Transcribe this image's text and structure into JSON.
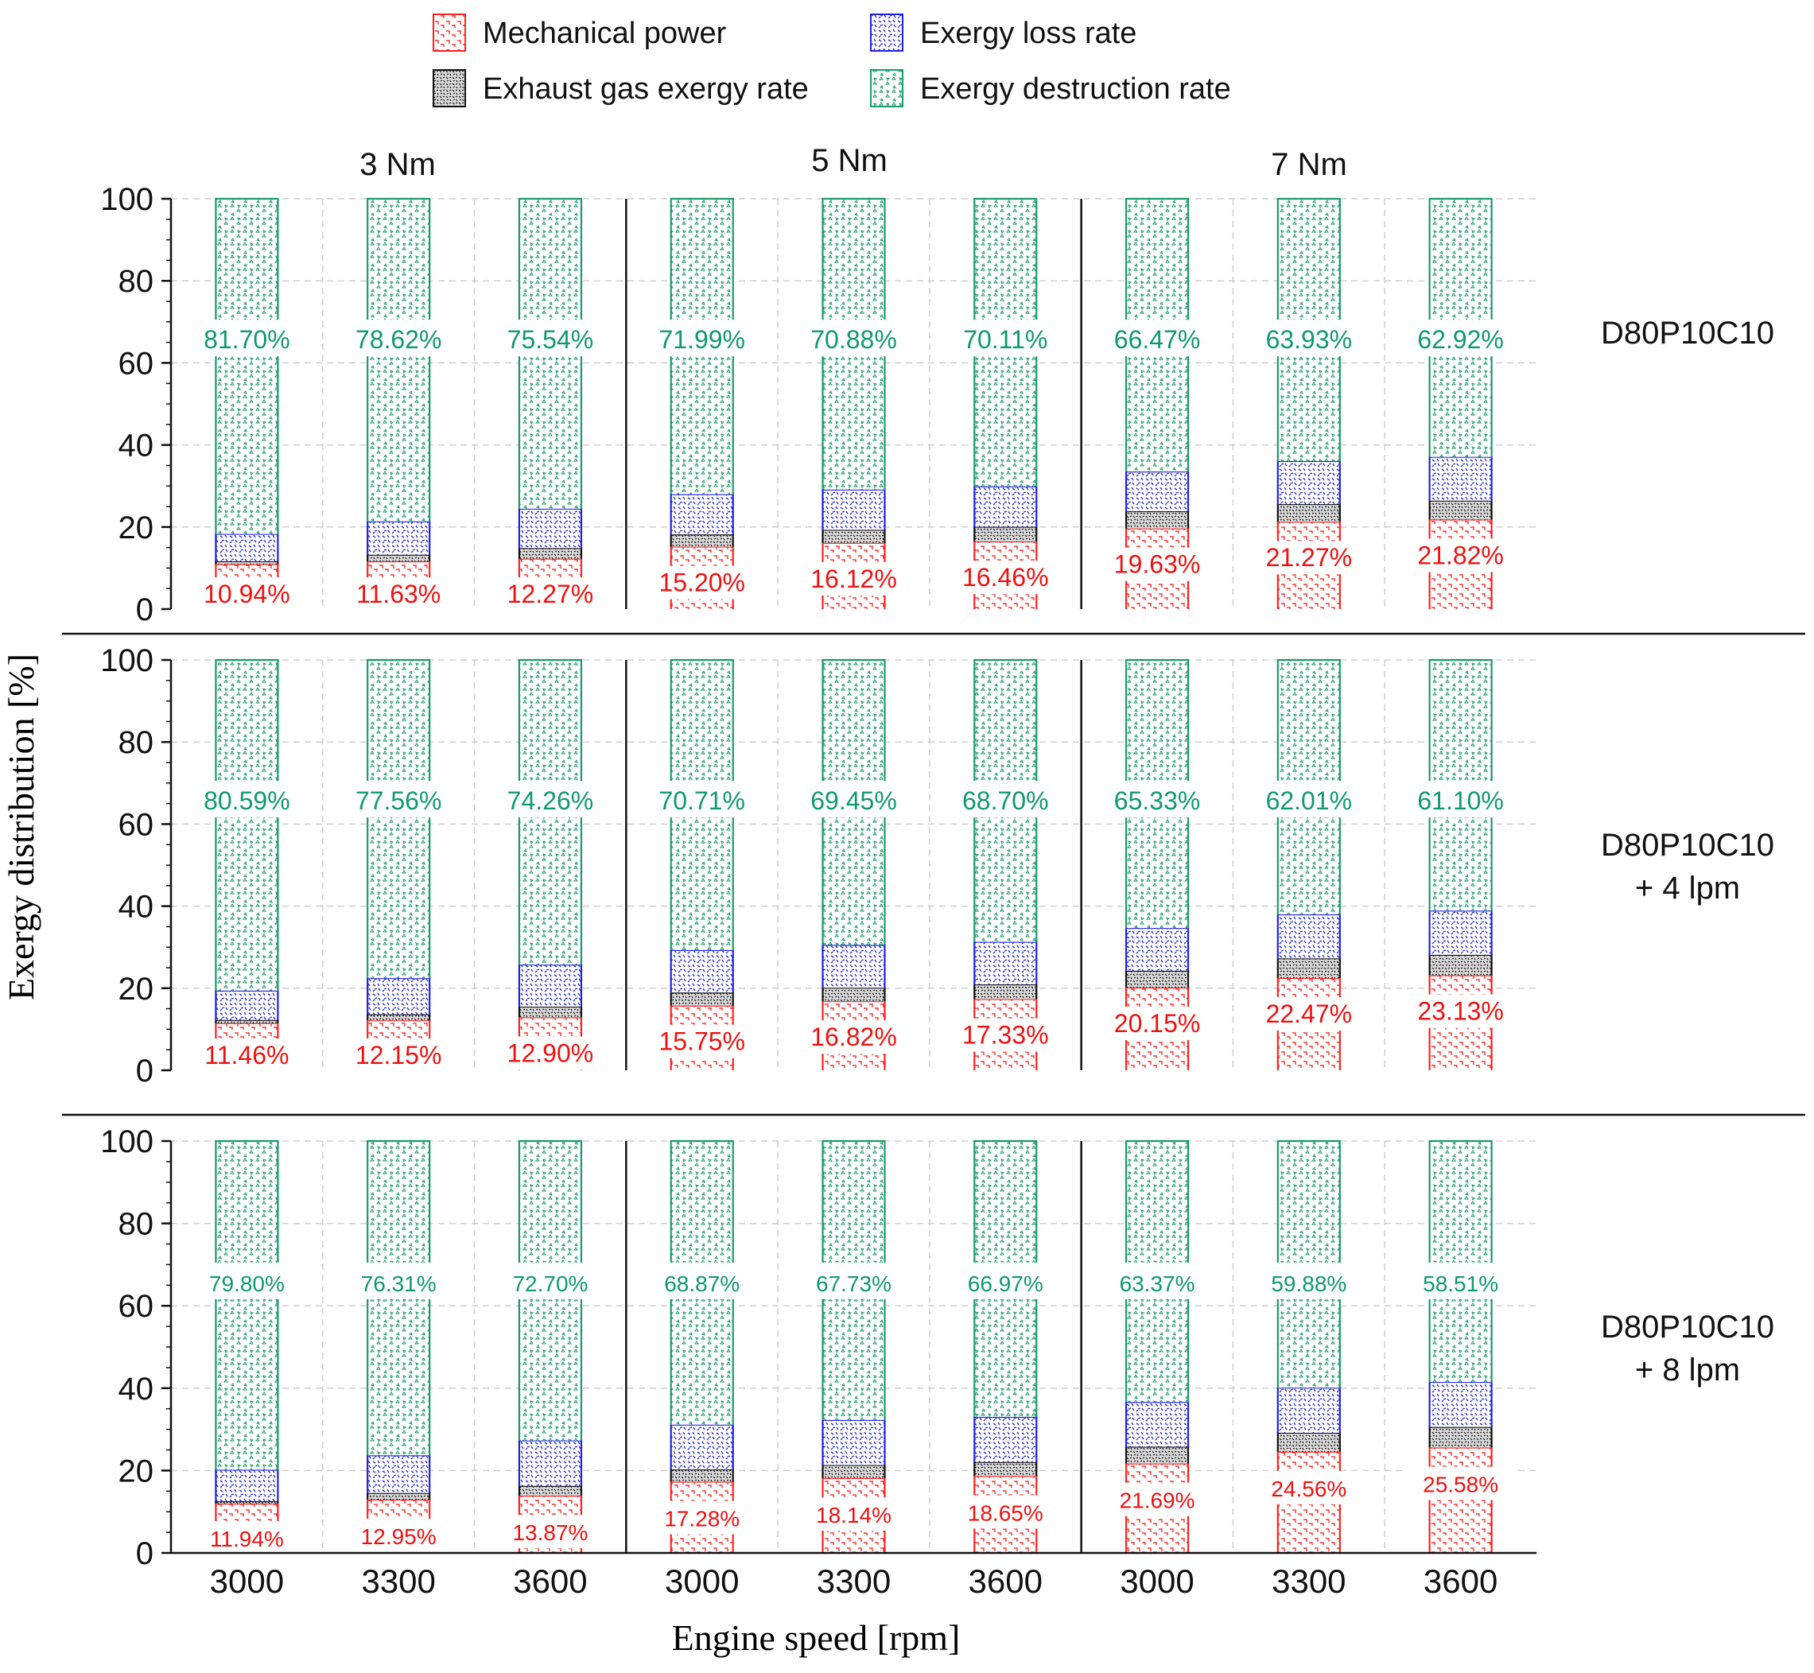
{
  "chart_data": {
    "type": "bar",
    "stacked": true,
    "title": "",
    "xlabel": "Engine speed [rpm]",
    "ylabel": "Exergy distribution  [%]",
    "ylim": [
      0,
      100
    ],
    "yticks": [
      "0",
      "20",
      "40",
      "60",
      "80",
      "100"
    ],
    "legend_position": "top-center",
    "legend": [
      {
        "key": "mech",
        "label": "Mechanical power",
        "color": "#ff2020"
      },
      {
        "key": "loss",
        "label": "Exergy loss rate",
        "color": "#2020e0"
      },
      {
        "key": "exh",
        "label": "Exhaust gas exergy rate",
        "color": "#111111"
      },
      {
        "key": "dest",
        "label": "Exergy destruction rate",
        "color": "#1a9a6a"
      }
    ],
    "torque_groups": [
      "3 Nm",
      "5 Nm",
      "7 Nm"
    ],
    "categories": [
      "3000",
      "3300",
      "3600",
      "3000",
      "3300",
      "3600",
      "3000",
      "3300",
      "3600"
    ],
    "panels": [
      {
        "name": "D80P10C10",
        "label_lines": [
          "D80P10C10"
        ],
        "mech_labels": [
          "10.94%",
          "11.63%",
          "12.27%",
          "15.20%",
          "16.12%",
          "16.46%",
          "19.63%",
          "21.27%",
          "21.82%"
        ],
        "dest_labels": [
          "81.70%",
          "78.62%",
          "75.54%",
          "71.99%",
          "70.88%",
          "70.11%",
          "66.47%",
          "63.93%",
          "62.92%"
        ],
        "mech": [
          10.94,
          11.63,
          12.27,
          15.2,
          16.12,
          16.46,
          19.63,
          21.27,
          21.82
        ],
        "exh": [
          0.7,
          1.6,
          2.6,
          3.0,
          3.2,
          3.6,
          4.2,
          4.3,
          4.6
        ],
        "loss": [
          6.66,
          8.15,
          9.59,
          9.81,
          9.8,
          9.83,
          9.7,
          10.5,
          10.66
        ],
        "dest": [
          81.7,
          78.62,
          75.54,
          71.99,
          70.88,
          70.11,
          66.47,
          63.93,
          62.92
        ]
      },
      {
        "name": "D80P10C10 + 4 lpm",
        "label_lines": [
          "D80P10C10",
          "+ 4 lpm"
        ],
        "mech_labels": [
          "11.46%",
          "12.15%",
          "12.90%",
          "15.75%",
          "16.82%",
          "17.33%",
          "20.15%",
          "22.47%",
          "23.13%"
        ],
        "dest_labels": [
          "80.59%",
          "77.56%",
          "74.26%",
          "70.71%",
          "69.45%",
          "68.70%",
          "65.33%",
          "62.01%",
          "61.10%"
        ],
        "mech": [
          11.46,
          12.15,
          12.9,
          15.75,
          16.82,
          17.33,
          20.15,
          22.47,
          23.13
        ],
        "exh": [
          0.8,
          1.5,
          2.6,
          3.2,
          3.3,
          3.6,
          4.1,
          4.8,
          5.0
        ],
        "loss": [
          7.15,
          8.79,
          10.24,
          10.34,
          10.43,
          10.37,
          10.42,
          10.72,
          10.77
        ],
        "dest": [
          80.59,
          77.56,
          74.26,
          70.71,
          69.45,
          68.7,
          65.33,
          62.01,
          61.1
        ]
      },
      {
        "name": "D80P10C10 + 8 lpm",
        "label_lines": [
          "D80P10C10",
          "+ 8 lpm"
        ],
        "mech_labels": [
          "11.94%",
          "12.95%",
          "13.87%",
          "17.28%",
          "18.14%",
          "18.65%",
          "21.69%",
          "24.56%",
          "25.58%"
        ],
        "dest_labels": [
          "79.80%",
          "76.31%",
          "72.70%",
          "68.87%",
          "67.73%",
          "66.97%",
          "63.37%",
          "59.88%",
          "58.51%"
        ],
        "mech": [
          11.94,
          12.95,
          13.87,
          17.28,
          18.14,
          18.65,
          21.69,
          24.56,
          25.58
        ],
        "exh": [
          0.6,
          1.6,
          2.4,
          3.0,
          3.2,
          3.4,
          4.1,
          4.6,
          5.0
        ],
        "loss": [
          7.66,
          9.14,
          11.03,
          10.85,
          10.93,
          10.98,
          10.84,
          10.96,
          10.91
        ],
        "dest": [
          79.8,
          76.31,
          72.7,
          68.87,
          67.73,
          66.97,
          63.37,
          59.88,
          58.51
        ]
      }
    ]
  }
}
